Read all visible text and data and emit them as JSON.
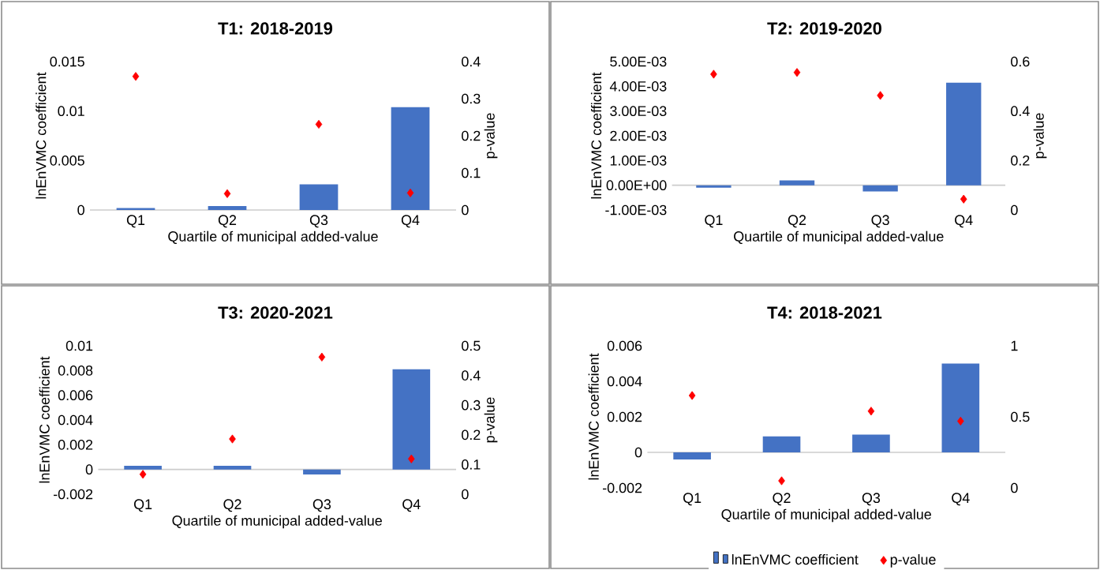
{
  "chart_data": [
    {
      "type": "bar",
      "title": "T1: 2018-2019",
      "xlabel": "Quartile of municipal added-value",
      "ylabel": "lnEnVMC coefficient",
      "y2label": "p-value",
      "categories": [
        "Q1",
        "Q2",
        "Q3",
        "Q4"
      ],
      "series": [
        {
          "color": "#4472c4",
          "values": [
            0.0002,
            0.0004,
            0.0026,
            0.0104
          ]
        },
        {
          "type": "scatter",
          "axis": "y2",
          "marker": "diamond",
          "color": "#ff0000",
          "values": [
            0.36,
            0.044,
            0.231,
            0.046
          ]
        }
      ],
      "ylim": [
        0,
        0.015
      ],
      "yticks": [
        0,
        0.005,
        0.01,
        0.015
      ],
      "y2lim": [
        0,
        0.4
      ],
      "y2ticks": [
        0,
        0.1,
        0.2,
        0.3,
        0.4
      ]
    },
    {
      "type": "bar",
      "title": "T2: 2019-2020",
      "xlabel": "Quartile of municipal added-value",
      "ylabel": "lnEnVMC coefficient",
      "y2label": "p-value",
      "categories": [
        "Q1",
        "Q2",
        "Q3",
        "Q4"
      ],
      "series": [
        {
          "color": "#4472c4",
          "values": [
            -0.0001,
            0.0002,
            -0.00025,
            0.00415
          ]
        },
        {
          "type": "scatter",
          "axis": "y2",
          "marker": "diamond",
          "color": "#ff0000",
          "values": [
            0.549,
            0.556,
            0.463,
            0.044
          ]
        }
      ],
      "ylim": [
        -0.001,
        0.005
      ],
      "yticks": [
        {
          "value": -0.001,
          "label": "-1.00E-03"
        },
        {
          "value": 0,
          "label": "0.00E+00"
        },
        {
          "value": 0.001,
          "label": "1.00E-03"
        },
        {
          "value": 0.002,
          "label": "2.00E-03"
        },
        {
          "value": 0.003,
          "label": "3.00E-03"
        },
        {
          "value": 0.004,
          "label": "4.00E-03"
        },
        {
          "value": 0.005,
          "label": "5.00E-03"
        }
      ],
      "y2lim": [
        0,
        0.6
      ],
      "y2ticks": [
        0,
        0.2,
        0.4,
        0.6
      ]
    },
    {
      "type": "bar",
      "title": "T3: 2020-2021",
      "xlabel": "Quartile of municipal added-value",
      "ylabel": "lnEnVMC coefficient",
      "y2label": "p-value",
      "categories": [
        "Q1",
        "Q2",
        "Q3",
        "Q4"
      ],
      "series": [
        {
          "color": "#4472c4",
          "values": [
            0.0003,
            0.0003,
            -0.0004,
            0.0081
          ]
        },
        {
          "type": "scatter",
          "axis": "y2",
          "marker": "diamond",
          "color": "#ff0000",
          "values": [
            0.067,
            0.186,
            0.462,
            0.119
          ]
        }
      ],
      "ylim": [
        -0.002,
        0.01
      ],
      "yticks": [
        -0.002,
        0,
        0.002,
        0.004,
        0.006,
        0.008,
        0.01
      ],
      "y2lim": [
        0,
        0.5
      ],
      "y2ticks": [
        0,
        0.1,
        0.2,
        0.3,
        0.4,
        0.5
      ]
    },
    {
      "type": "bar",
      "title": "T4: 2018-2021",
      "xlabel": "Quartile of municipal added-value",
      "ylabel": "lnEnVMC coefficient",
      "categories": [
        "Q1",
        "Q2",
        "Q3",
        "Q4"
      ],
      "legend": "bottom",
      "series": [
        {
          "name": "lnEnVMC coefficient",
          "color": "#4472c4",
          "values": [
            -0.0004,
            0.0009,
            0.001,
            0.005
          ]
        },
        {
          "type": "scatter",
          "name": "p-value",
          "axis": "y2",
          "marker": "diamond",
          "color": "#ff0000",
          "values": [
            0.65,
            0.05,
            0.54,
            0.47
          ]
        }
      ],
      "ylim": [
        -0.002,
        0.006
      ],
      "yticks": [
        -0.002,
        0,
        0.002,
        0.004,
        0.006
      ],
      "y2lim": [
        0,
        1
      ],
      "y2ticks": [
        0,
        0.5,
        1
      ]
    }
  ]
}
